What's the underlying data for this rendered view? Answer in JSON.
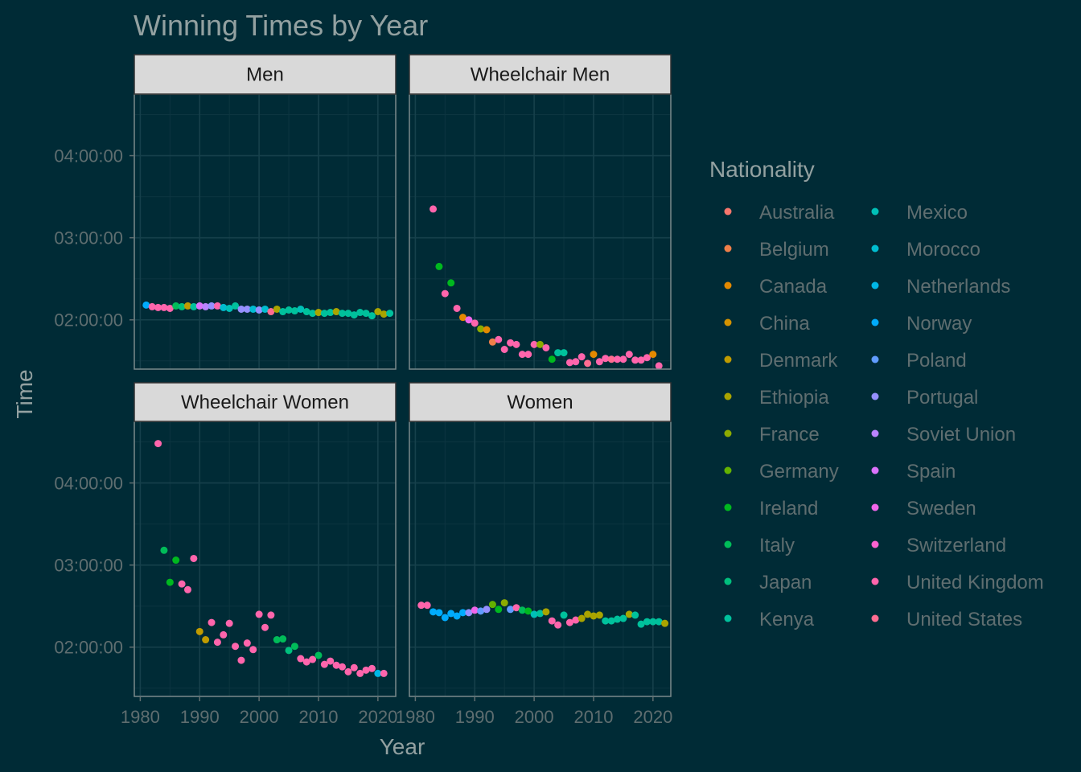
{
  "chart_data": {
    "type": "scatter",
    "title": "Winning Times by Year",
    "xlabel": "Year",
    "ylabel": "Time",
    "xlim": [
      1979,
      2023
    ],
    "x_ticks": [
      1980,
      1990,
      2000,
      2010,
      2020
    ],
    "y_range_hours": [
      1.4,
      4.75
    ],
    "y_ticks": [
      {
        "hours": 2,
        "label": "02:00:00"
      },
      {
        "hours": 3,
        "label": "03:00:00"
      },
      {
        "hours": 4,
        "label": "04:00:00"
      }
    ],
    "grid": true,
    "legend": {
      "title": "Nationality",
      "placement": "right",
      "entries": [
        {
          "name": "Australia",
          "color": "#F8766D"
        },
        {
          "name": "Belgium",
          "color": "#EF7F49"
        },
        {
          "name": "Canada",
          "color": "#E38900"
        },
        {
          "name": "China",
          "color": "#D49200"
        },
        {
          "name": "Denmark",
          "color": "#C09B00"
        },
        {
          "name": "Ethiopia",
          "color": "#A9A400"
        },
        {
          "name": "France",
          "color": "#8DAB00"
        },
        {
          "name": "Germany",
          "color": "#64B200"
        },
        {
          "name": "Ireland",
          "color": "#00B81F"
        },
        {
          "name": "Italy",
          "color": "#00BC59"
        },
        {
          "name": "Japan",
          "color": "#00BF7D"
        },
        {
          "name": "Kenya",
          "color": "#00C19C"
        },
        {
          "name": "Mexico",
          "color": "#00C0B7"
        },
        {
          "name": "Morocco",
          "color": "#00BDD0"
        },
        {
          "name": "Netherlands",
          "color": "#00B6E6"
        },
        {
          "name": "Norway",
          "color": "#00ABFD"
        },
        {
          "name": "Poland",
          "color": "#619CFF"
        },
        {
          "name": "Portugal",
          "color": "#9590FF"
        },
        {
          "name": "Soviet Union",
          "color": "#BA83FF"
        },
        {
          "name": "Spain",
          "color": "#DB72FB"
        },
        {
          "name": "Sweden",
          "color": "#F066EA"
        },
        {
          "name": "Switzerland",
          "color": "#FF62D0"
        },
        {
          "name": "United Kingdom",
          "color": "#FF65AC"
        },
        {
          "name": "United States",
          "color": "#FF6C91"
        }
      ]
    },
    "panels": [
      {
        "name": "Men",
        "points": [
          [
            1981,
            2.18,
            "Norway"
          ],
          [
            1982,
            2.16,
            "United Kingdom"
          ],
          [
            1983,
            2.15,
            "United Kingdom"
          ],
          [
            1984,
            2.15,
            "United Kingdom"
          ],
          [
            1985,
            2.14,
            "United Kingdom"
          ],
          [
            1986,
            2.17,
            "Italy"
          ],
          [
            1987,
            2.16,
            "Japan"
          ],
          [
            1988,
            2.17,
            "Denmark"
          ],
          [
            1989,
            2.16,
            "Kenya"
          ],
          [
            1990,
            2.17,
            "Spain"
          ],
          [
            1991,
            2.16,
            "Soviet Union"
          ],
          [
            1992,
            2.17,
            "Portugal"
          ],
          [
            1993,
            2.17,
            "United Kingdom"
          ],
          [
            1994,
            2.15,
            "Morocco"
          ],
          [
            1995,
            2.14,
            "Mexico"
          ],
          [
            1996,
            2.17,
            "Kenya"
          ],
          [
            1997,
            2.13,
            "Portugal"
          ],
          [
            1998,
            2.13,
            "Portugal"
          ],
          [
            1999,
            2.13,
            "Morocco"
          ],
          [
            2000,
            2.12,
            "Portugal"
          ],
          [
            2001,
            2.13,
            "Morocco"
          ],
          [
            2002,
            2.1,
            "United States"
          ],
          [
            2003,
            2.13,
            "Ethiopia"
          ],
          [
            2004,
            2.1,
            "Kenya"
          ],
          [
            2005,
            2.12,
            "Kenya"
          ],
          [
            2006,
            2.11,
            "Kenya"
          ],
          [
            2007,
            2.13,
            "Mexico"
          ],
          [
            2008,
            2.1,
            "Kenya"
          ],
          [
            2009,
            2.08,
            "Kenya"
          ],
          [
            2010,
            2.09,
            "Ethiopia"
          ],
          [
            2011,
            2.08,
            "Kenya"
          ],
          [
            2012,
            2.09,
            "Kenya"
          ],
          [
            2013,
            2.1,
            "Ethiopia"
          ],
          [
            2014,
            2.08,
            "Kenya"
          ],
          [
            2015,
            2.08,
            "Kenya"
          ],
          [
            2016,
            2.06,
            "Kenya"
          ],
          [
            2017,
            2.09,
            "Kenya"
          ],
          [
            2018,
            2.08,
            "Kenya"
          ],
          [
            2019,
            2.05,
            "Kenya"
          ],
          [
            2020,
            2.1,
            "Ethiopia"
          ],
          [
            2021,
            2.07,
            "Ethiopia"
          ],
          [
            2022,
            2.08,
            "Kenya"
          ]
        ]
      },
      {
        "name": "Wheelchair Men",
        "points": [
          [
            1983,
            3.35,
            "United Kingdom"
          ],
          [
            1984,
            2.65,
            "Ireland"
          ],
          [
            1985,
            2.32,
            "United Kingdom"
          ],
          [
            1986,
            2.45,
            "Ireland"
          ],
          [
            1987,
            2.14,
            "United Kingdom"
          ],
          [
            1988,
            2.03,
            "Canada"
          ],
          [
            1989,
            2.0,
            "Sweden"
          ],
          [
            1990,
            1.96,
            "United Kingdom"
          ],
          [
            1991,
            1.89,
            "France"
          ],
          [
            1992,
            1.88,
            "Canada"
          ],
          [
            1993,
            1.73,
            "Belgium"
          ],
          [
            1994,
            1.76,
            "United Kingdom"
          ],
          [
            1995,
            1.64,
            "United Kingdom"
          ],
          [
            1996,
            1.72,
            "United Kingdom"
          ],
          [
            1997,
            1.7,
            "United Kingdom"
          ],
          [
            1998,
            1.58,
            "United Kingdom"
          ],
          [
            1999,
            1.58,
            "United Kingdom"
          ],
          [
            2000,
            1.7,
            "United Kingdom"
          ],
          [
            2001,
            1.7,
            "France"
          ],
          [
            2002,
            1.66,
            "United Kingdom"
          ],
          [
            2003,
            1.52,
            "Ireland"
          ],
          [
            2004,
            1.6,
            "Kenya"
          ],
          [
            2005,
            1.6,
            "Kenya"
          ],
          [
            2006,
            1.48,
            "United Kingdom"
          ],
          [
            2007,
            1.49,
            "United Kingdom"
          ],
          [
            2008,
            1.55,
            "United Kingdom"
          ],
          [
            2009,
            1.47,
            "United States"
          ],
          [
            2010,
            1.58,
            "Canada"
          ],
          [
            2011,
            1.49,
            "United Kingdom"
          ],
          [
            2012,
            1.53,
            "United Kingdom"
          ],
          [
            2013,
            1.52,
            "United States"
          ],
          [
            2014,
            1.52,
            "United Kingdom"
          ],
          [
            2015,
            1.52,
            "United Kingdom"
          ],
          [
            2016,
            1.58,
            "United Kingdom"
          ],
          [
            2017,
            1.51,
            "United Kingdom"
          ],
          [
            2018,
            1.51,
            "United Kingdom"
          ],
          [
            2019,
            1.54,
            "United Kingdom"
          ],
          [
            2020,
            1.58,
            "Canada"
          ],
          [
            2021,
            1.44,
            "United Kingdom"
          ]
        ]
      },
      {
        "name": "Wheelchair Women",
        "points": [
          [
            1983,
            4.48,
            "United Kingdom"
          ],
          [
            1984,
            3.18,
            "Italy"
          ],
          [
            1985,
            2.79,
            "Ireland"
          ],
          [
            1986,
            3.06,
            "Ireland"
          ],
          [
            1987,
            2.77,
            "United Kingdom"
          ],
          [
            1988,
            2.7,
            "United Kingdom"
          ],
          [
            1989,
            3.08,
            "United Kingdom"
          ],
          [
            1990,
            2.19,
            "Denmark"
          ],
          [
            1991,
            2.09,
            "Denmark"
          ],
          [
            1992,
            2.3,
            "United Kingdom"
          ],
          [
            1993,
            2.06,
            "United Kingdom"
          ],
          [
            1994,
            2.15,
            "United Kingdom"
          ],
          [
            1995,
            2.29,
            "United Kingdom"
          ],
          [
            1996,
            2.01,
            "United Kingdom"
          ],
          [
            1997,
            1.84,
            "United Kingdom"
          ],
          [
            1998,
            2.05,
            "United Kingdom"
          ],
          [
            1999,
            1.97,
            "United Kingdom"
          ],
          [
            2000,
            2.4,
            "United Kingdom"
          ],
          [
            2001,
            2.24,
            "United Kingdom"
          ],
          [
            2002,
            2.39,
            "United Kingdom"
          ],
          [
            2003,
            2.09,
            "Italy"
          ],
          [
            2004,
            2.1,
            "Italy"
          ],
          [
            2005,
            1.96,
            "Japan"
          ],
          [
            2006,
            2.01,
            "Italy"
          ],
          [
            2007,
            1.86,
            "United Kingdom"
          ],
          [
            2008,
            1.82,
            "United Kingdom"
          ],
          [
            2009,
            1.85,
            "United Kingdom"
          ],
          [
            2010,
            1.9,
            "Italy"
          ],
          [
            2011,
            1.79,
            "United Kingdom"
          ],
          [
            2012,
            1.83,
            "United Kingdom"
          ],
          [
            2013,
            1.78,
            "United Kingdom"
          ],
          [
            2014,
            1.76,
            "United Kingdom"
          ],
          [
            2015,
            1.7,
            "United Kingdom"
          ],
          [
            2016,
            1.75,
            "United Kingdom"
          ],
          [
            2017,
            1.68,
            "United Kingdom"
          ],
          [
            2018,
            1.72,
            "United Kingdom"
          ],
          [
            2019,
            1.74,
            "United Kingdom"
          ],
          [
            2020,
            1.68,
            "Netherlands"
          ],
          [
            2021,
            1.68,
            "United Kingdom"
          ]
        ]
      },
      {
        "name": "Women",
        "points": [
          [
            1981,
            2.51,
            "United Kingdom"
          ],
          [
            1982,
            2.51,
            "United Kingdom"
          ],
          [
            1983,
            2.43,
            "Norway"
          ],
          [
            1984,
            2.42,
            "Norway"
          ],
          [
            1985,
            2.36,
            "Norway"
          ],
          [
            1986,
            2.41,
            "Norway"
          ],
          [
            1987,
            2.38,
            "Norway"
          ],
          [
            1988,
            2.42,
            "Norway"
          ],
          [
            1989,
            2.42,
            "Portugal"
          ],
          [
            1990,
            2.45,
            "Sweden"
          ],
          [
            1991,
            2.44,
            "Poland"
          ],
          [
            1992,
            2.46,
            "Portugal"
          ],
          [
            1993,
            2.52,
            "Germany"
          ],
          [
            1994,
            2.46,
            "Ireland"
          ],
          [
            1995,
            2.54,
            "France"
          ],
          [
            1996,
            2.46,
            "Poland"
          ],
          [
            1997,
            2.48,
            "United Kingdom"
          ],
          [
            1998,
            2.45,
            "Italy"
          ],
          [
            1999,
            2.44,
            "Ireland"
          ],
          [
            2000,
            2.4,
            "Mexico"
          ],
          [
            2001,
            2.41,
            "Kenya"
          ],
          [
            2002,
            2.43,
            "Ethiopia"
          ],
          [
            2003,
            2.32,
            "United Kingdom"
          ],
          [
            2004,
            2.27,
            "United Kingdom"
          ],
          [
            2005,
            2.39,
            "Kenya"
          ],
          [
            2006,
            2.3,
            "United Kingdom"
          ],
          [
            2007,
            2.33,
            "United Kingdom"
          ],
          [
            2008,
            2.35,
            "Ethiopia"
          ],
          [
            2009,
            2.4,
            "Ethiopia"
          ],
          [
            2010,
            2.38,
            "Ethiopia"
          ],
          [
            2011,
            2.39,
            "Ethiopia"
          ],
          [
            2012,
            2.32,
            "Kenya"
          ],
          [
            2013,
            2.32,
            "Kenya"
          ],
          [
            2014,
            2.34,
            "Kenya"
          ],
          [
            2015,
            2.35,
            "Kenya"
          ],
          [
            2016,
            2.4,
            "Ethiopia"
          ],
          [
            2017,
            2.39,
            "Kenya"
          ],
          [
            2018,
            2.28,
            "Kenya"
          ],
          [
            2019,
            2.31,
            "Kenya"
          ],
          [
            2020,
            2.31,
            "Kenya"
          ],
          [
            2021,
            2.31,
            "Kenya"
          ],
          [
            2022,
            2.29,
            "Ethiopia"
          ]
        ]
      }
    ]
  }
}
